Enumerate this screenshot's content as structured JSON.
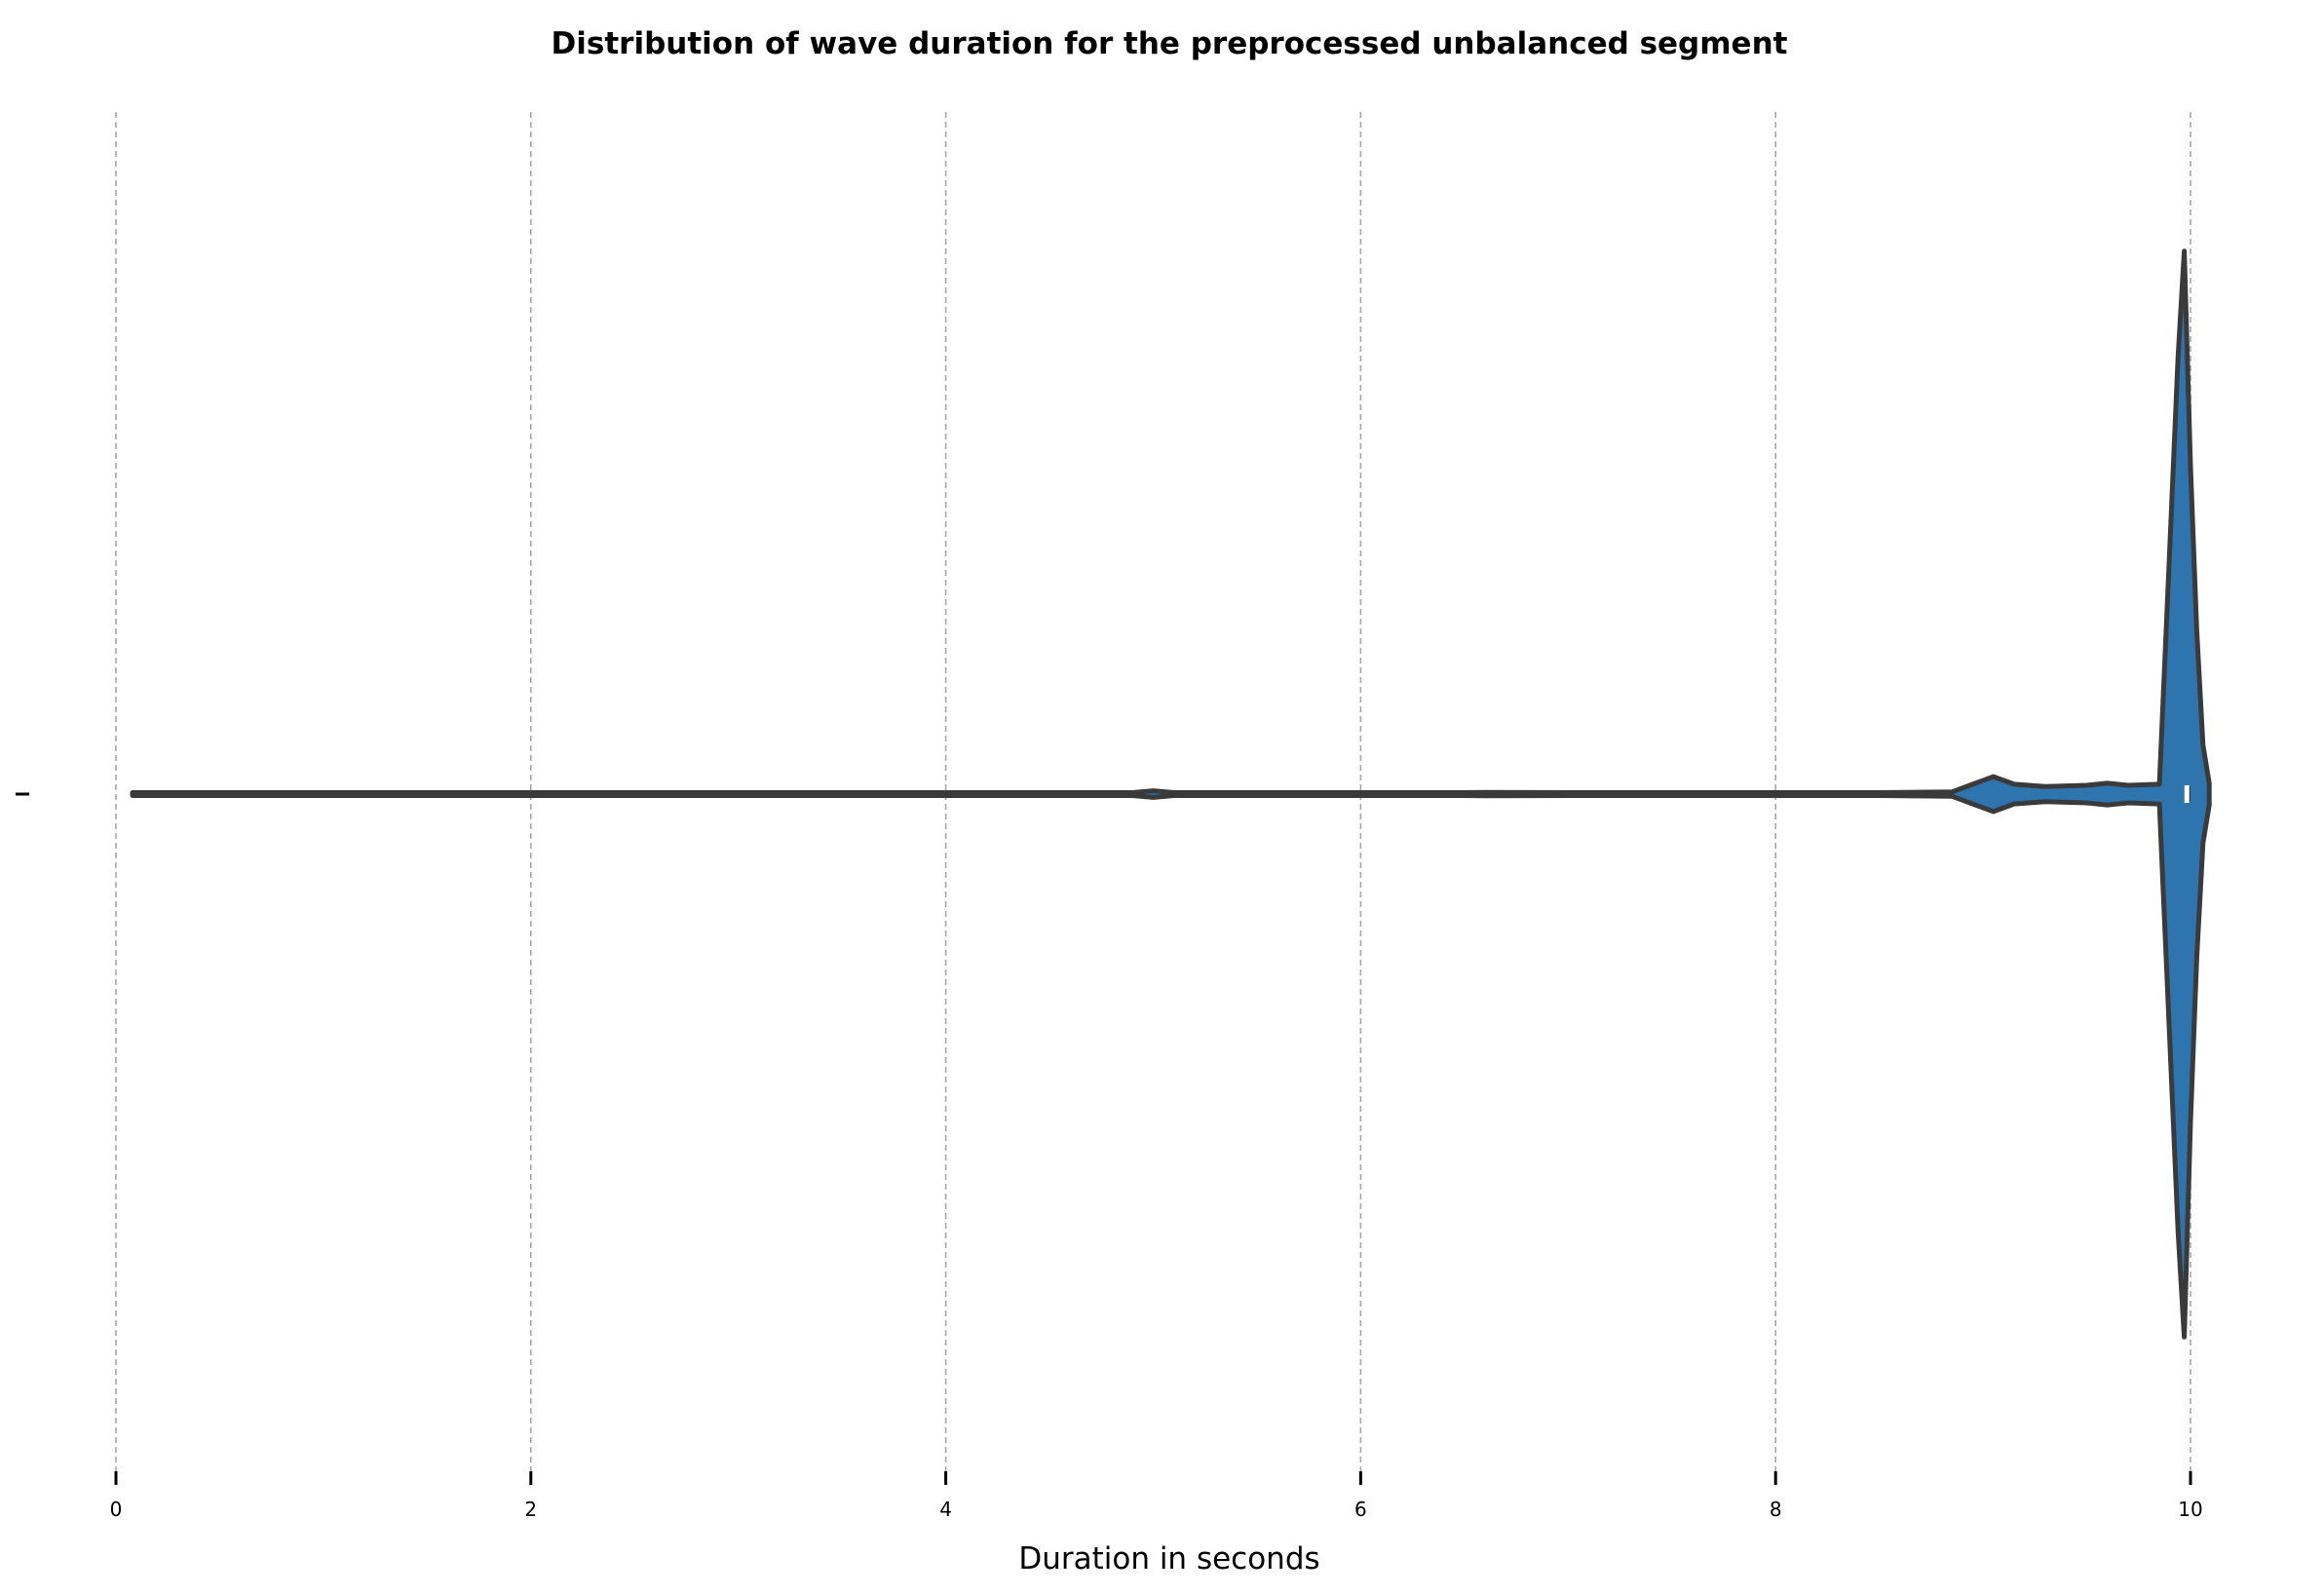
{
  "chart_data": {
    "type": "violin",
    "title": "Distribution of wave duration for the preprocessed unbalanced segment",
    "xlabel": "Duration in seconds",
    "ylabel": "",
    "xlim": [
      0,
      10.5
    ],
    "x_ticks": [
      0,
      2,
      4,
      6,
      8,
      10
    ],
    "x_tick_labels": [
      "0",
      "2",
      "4",
      "6",
      "8",
      "10"
    ],
    "y_tick_labels": [
      ""
    ],
    "grid": "vertical dashed",
    "violin_color": "#2e75b0",
    "outline_color": "#3a3a3a",
    "median_color": "#ffffff",
    "series": [
      {
        "density_x": [
          0.08,
          0.5,
          1.0,
          2.0,
          3.0,
          4.0,
          4.9,
          5.0,
          5.1,
          6.0,
          6.5,
          6.6,
          7.0,
          8.0,
          8.5,
          8.85,
          8.95,
          9.05,
          9.15,
          9.3,
          9.5,
          9.6,
          9.7,
          9.85,
          9.9,
          9.94,
          9.97,
          10.0,
          10.03,
          10.06,
          10.09
        ],
        "density_y": [
          0.002,
          0.002,
          0.002,
          0.002,
          0.002,
          0.002,
          0.002,
          0.006,
          0.002,
          0.002,
          0.002,
          0.003,
          0.002,
          0.002,
          0.002,
          0.004,
          0.018,
          0.032,
          0.018,
          0.014,
          0.016,
          0.02,
          0.016,
          0.018,
          0.45,
          0.8,
          0.995,
          0.6,
          0.3,
          0.09,
          0.02
        ],
        "box_q1": 9.97,
        "box_q3": 10.0,
        "median": 9.98
      }
    ]
  }
}
